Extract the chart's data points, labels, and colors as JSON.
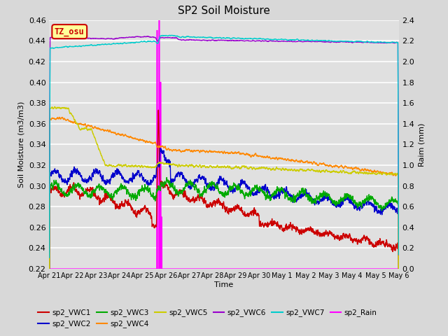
{
  "title": "SP2 Soil Moisture",
  "ylabel_left": "Soil Moisture (m3/m3)",
  "ylabel_right": "Raim (mm)",
  "xlabel": "Time",
  "ylim_left": [
    0.22,
    0.46
  ],
  "ylim_right": [
    0.0,
    2.4
  ],
  "fig_facecolor": "#d8d8d8",
  "plot_facecolor": "#e0e0e0",
  "grid_color": "#ffffff",
  "colors": {
    "sp2_VWC1": "#cc0000",
    "sp2_VWC2": "#0000cc",
    "sp2_VWC3": "#00aa00",
    "sp2_VWC4": "#ff8800",
    "sp2_VWC5": "#cccc00",
    "sp2_VWC6": "#9900cc",
    "sp2_VWC7": "#00cccc",
    "sp2_Rain": "#ff00ff"
  },
  "tz_osu_box": {
    "text": "TZ_osu",
    "facecolor": "#ffff99",
    "edgecolor": "#cc0000",
    "text_color": "#cc0000"
  },
  "tick_labels": [
    "Apr 21",
    "Apr 22",
    "Apr 23",
    "Apr 24",
    "Apr 25",
    "Apr 26",
    "Apr 27",
    "Apr 28",
    "Apr 29",
    "Apr 30",
    "May 1",
    "May 2",
    "May 3",
    "May 4",
    "May 5",
    "May 6"
  ],
  "num_points": 3000,
  "duration_days": 15
}
